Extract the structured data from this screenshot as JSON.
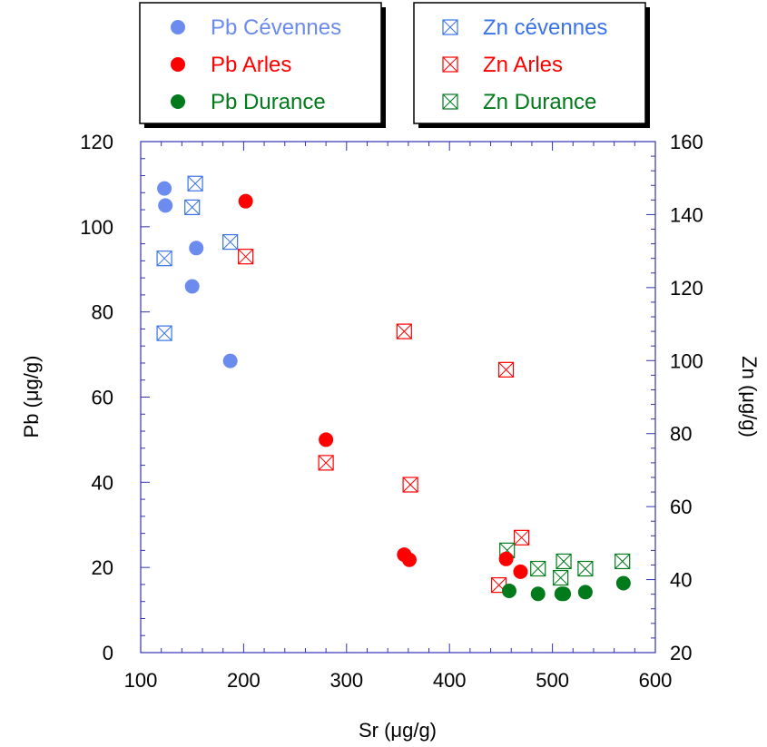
{
  "chart_data": {
    "type": "scatter",
    "xlabel": "Sr (μg/g)",
    "ylabel_left": "Pb (μg/g)",
    "ylabel_right": "Zn (μg/g)",
    "xlim": [
      100,
      600
    ],
    "ylim_left": [
      0,
      120
    ],
    "ylim_right": [
      20,
      160
    ],
    "x_ticks": [
      100,
      200,
      300,
      400,
      500,
      600
    ],
    "y_left_ticks": [
      0,
      20,
      40,
      60,
      80,
      100,
      120
    ],
    "y_right_ticks": [
      20,
      40,
      60,
      80,
      100,
      120,
      140,
      160
    ],
    "x_tick_labels": [
      "100",
      "200",
      "300",
      "400",
      "500",
      "600"
    ],
    "y_left_tick_labels": [
      "0",
      "20",
      "40",
      "60",
      "80",
      "100",
      "120"
    ],
    "y_right_tick_labels": [
      "20",
      "40",
      "60",
      "80",
      "100",
      "120",
      "140",
      "160"
    ],
    "legend_placement": "top, two boxes",
    "series": [
      {
        "name": "Pb Cévennes",
        "axis": "left",
        "marker": "circle",
        "color": "#6B8BEE",
        "points": [
          [
            123,
            109
          ],
          [
            124,
            105
          ],
          [
            154,
            95
          ],
          [
            150,
            86
          ],
          [
            187,
            68.5
          ]
        ]
      },
      {
        "name": "Pb Arles",
        "axis": "left",
        "marker": "circle",
        "color": "#FF0000",
        "points": [
          [
            202,
            106
          ],
          [
            280,
            50
          ],
          [
            356,
            23
          ],
          [
            361,
            21.8
          ],
          [
            455,
            22
          ],
          [
            469,
            19
          ]
        ]
      },
      {
        "name": "Pb Durance",
        "axis": "left",
        "marker": "circle",
        "color": "#007A1A",
        "points": [
          [
            458,
            14.5
          ],
          [
            486,
            13.8
          ],
          [
            509,
            13.8
          ],
          [
            511,
            13.8
          ],
          [
            532,
            14.2
          ],
          [
            569,
            16.3
          ]
        ]
      },
      {
        "name": "Zn cévennes",
        "axis": "right",
        "marker": "crossed-square",
        "color": "#3A73E8",
        "points": [
          [
            153,
            148.5
          ],
          [
            150,
            142
          ],
          [
            187,
            132.5
          ],
          [
            123,
            128
          ],
          [
            123,
            107.5
          ]
        ]
      },
      {
        "name": "Zn Arles",
        "axis": "right",
        "marker": "crossed-square",
        "color": "#FF0000",
        "points": [
          [
            202,
            128.5
          ],
          [
            356,
            108
          ],
          [
            455,
            97.5
          ],
          [
            280,
            72
          ],
          [
            362,
            66
          ],
          [
            470,
            51.5
          ],
          [
            448,
            38.5
          ]
        ]
      },
      {
        "name": "Zn Durance",
        "axis": "right",
        "marker": "crossed-square",
        "color": "#007A1A",
        "points": [
          [
            456,
            48
          ],
          [
            486,
            43
          ],
          [
            508,
            40.5
          ],
          [
            511,
            45
          ],
          [
            532,
            43
          ],
          [
            568,
            45
          ]
        ]
      }
    ]
  },
  "legend": {
    "left": [
      {
        "label": "Pb Cévennes",
        "color": "#6B8BEE",
        "marker": "circle"
      },
      {
        "label": "Pb Arles",
        "color": "#FF0000",
        "marker": "circle"
      },
      {
        "label": "Pb Durance",
        "color": "#007A1A",
        "marker": "circle"
      }
    ],
    "right": [
      {
        "label": "Zn cévennes",
        "color": "#3A73E8",
        "marker": "crossed-square"
      },
      {
        "label": "Zn Arles",
        "color": "#FF0000",
        "marker": "crossed-square"
      },
      {
        "label": "Zn Durance",
        "color": "#007A1A",
        "marker": "crossed-square"
      }
    ]
  },
  "colors": {
    "axis": "#3232B4",
    "text": "#000000"
  }
}
